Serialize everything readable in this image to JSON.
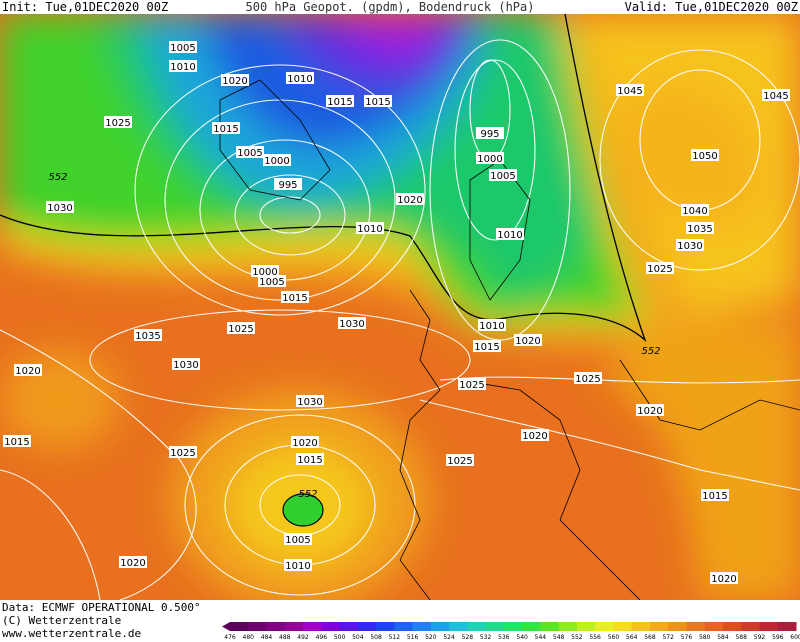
{
  "header": {
    "init": "Init: Tue,01DEC2020 00Z",
    "title": "500 hPa Geopot. (gpdm), Bodendruck (hPa)",
    "valid": "Valid: Tue,01DEC2020 00Z"
  },
  "isobar_labels": [
    "1005",
    "1010",
    "1020",
    "1010",
    "1015",
    "1015",
    "1025",
    "1015",
    "1005",
    "1000",
    "995",
    "995",
    "1000",
    "1005",
    "1020",
    "1010",
    "1030",
    "552",
    "1000",
    "1005",
    "1015",
    "1010",
    "1025",
    "1030",
    "1010",
    "1015",
    "1020",
    "552",
    "1045",
    "1045",
    "1050",
    "1040",
    "1035",
    "1030",
    "1025",
    "1035",
    "1030",
    "1020",
    "1030",
    "1025",
    "1025",
    "1020",
    "1020",
    "1015",
    "1025",
    "1020",
    "1015",
    "1025",
    "552",
    "1005",
    "1010",
    "1015",
    "1020",
    "1020"
  ],
  "footer": {
    "data": "Data: ECMWF OPERATIONAL 0.500°",
    "copyright": "(C) Wetterzentrale",
    "url": "www.wetterzentrale.de"
  },
  "colorbar": {
    "ticks": [
      476,
      480,
      484,
      488,
      492,
      496,
      500,
      504,
      508,
      512,
      516,
      520,
      524,
      528,
      532,
      536,
      540,
      544,
      548,
      552,
      556,
      560,
      564,
      568,
      572,
      576,
      580,
      584,
      588,
      592,
      596,
      600
    ]
  }
}
